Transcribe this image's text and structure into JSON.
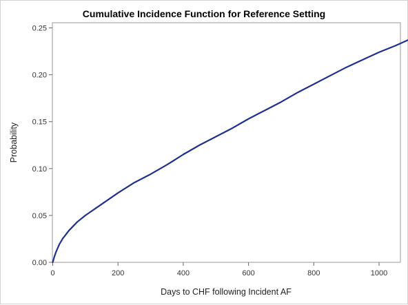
{
  "chart_data": {
    "type": "line",
    "title": "Cumulative Incidence Function for Reference Setting",
    "xlabel": "Days to CHF following Incident AF",
    "ylabel": "Probability",
    "xlim": [
      0,
      1100
    ],
    "ylim": [
      0,
      0.25
    ],
    "xticks": [
      "0",
      "200",
      "400",
      "600",
      "800",
      "1000"
    ],
    "yticks": [
      "0.00",
      "0.05",
      "0.10",
      "0.15",
      "0.20",
      "0.25"
    ],
    "grid": false,
    "legend": "none",
    "series": [
      {
        "color": "#1f2f8f",
        "x": [
          0,
          5,
          10,
          20,
          30,
          50,
          75,
          100,
          150,
          200,
          250,
          300,
          350,
          400,
          450,
          500,
          550,
          600,
          650,
          700,
          750,
          800,
          850,
          900,
          950,
          1000,
          1050,
          1095
        ],
        "y": [
          0.0,
          0.006,
          0.011,
          0.019,
          0.025,
          0.034,
          0.043,
          0.05,
          0.062,
          0.074,
          0.085,
          0.094,
          0.104,
          0.115,
          0.125,
          0.134,
          0.143,
          0.153,
          0.162,
          0.171,
          0.181,
          0.19,
          0.199,
          0.208,
          0.216,
          0.224,
          0.231,
          0.238
        ]
      }
    ]
  }
}
